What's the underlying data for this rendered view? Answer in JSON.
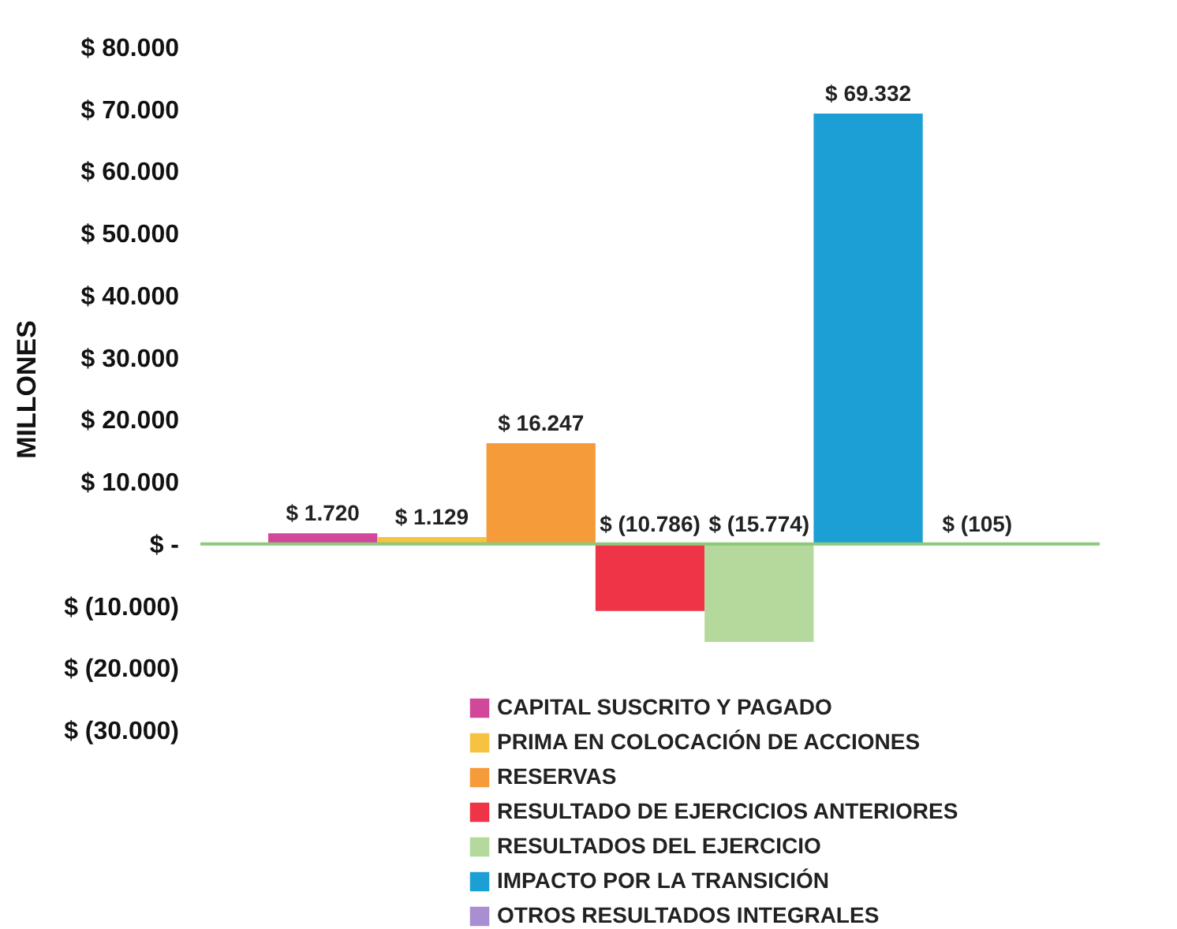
{
  "chart_data": {
    "type": "bar",
    "ylabel": "MILLONES",
    "categories": [
      null
    ],
    "series": [
      {
        "name": "CAPITAL SUSCRITO Y PAGADO",
        "color": "#d1489a",
        "values": [
          1720
        ],
        "value_labels": [
          "$ 1.720"
        ]
      },
      {
        "name": "PRIMA EN COLOCACIÓN DE ACCIONES",
        "color": "#f5c242",
        "values": [
          1129
        ],
        "value_labels": [
          "$ 1.129"
        ]
      },
      {
        "name": "RESERVAS",
        "color": "#f59b3a",
        "values": [
          16247
        ],
        "value_labels": [
          "$ 16.247"
        ]
      },
      {
        "name": "RESULTADO DE EJERCICIOS ANTERIORES",
        "color": "#ee3446",
        "values": [
          -10786
        ],
        "value_labels": [
          "$ (10.786)"
        ]
      },
      {
        "name": "RESULTADOS DEL EJERCICIO",
        "color": "#b5d99c",
        "values": [
          -15774
        ],
        "value_labels": [
          "$ (15.774)"
        ]
      },
      {
        "name": "IMPACTO POR LA TRANSICIÓN",
        "color": "#1b9fd4",
        "values": [
          69332
        ],
        "value_labels": [
          "$ 69.332"
        ]
      },
      {
        "name": "OTROS RESULTADOS INTEGRALES",
        "color": "#a98ed1",
        "values": [
          -105
        ],
        "value_labels": [
          "$ (105)"
        ]
      }
    ],
    "ylim": [
      -30000,
      80000
    ],
    "yticks": [
      {
        "value": -30000,
        "label": "$ (30.000)"
      },
      {
        "value": -20000,
        "label": "$ (20.000)"
      },
      {
        "value": -10000,
        "label": "$ (10.000)"
      },
      {
        "value": 0,
        "label": "$ -"
      },
      {
        "value": 10000,
        "label": "$ 10.000"
      },
      {
        "value": 20000,
        "label": "$ 20.000"
      },
      {
        "value": 30000,
        "label": "$ 30.000"
      },
      {
        "value": 40000,
        "label": "$ 40.000"
      },
      {
        "value": 50000,
        "label": "$ 50.000"
      },
      {
        "value": 60000,
        "label": "$ 60.000"
      },
      {
        "value": 70000,
        "label": "$ 70.000"
      },
      {
        "value": 80000,
        "label": "$ 80.000"
      }
    ],
    "ref_lines": [
      {
        "axis": "y",
        "value": 0,
        "color": "#8cc97a"
      }
    ],
    "grid": false,
    "legend": "bottom"
  }
}
